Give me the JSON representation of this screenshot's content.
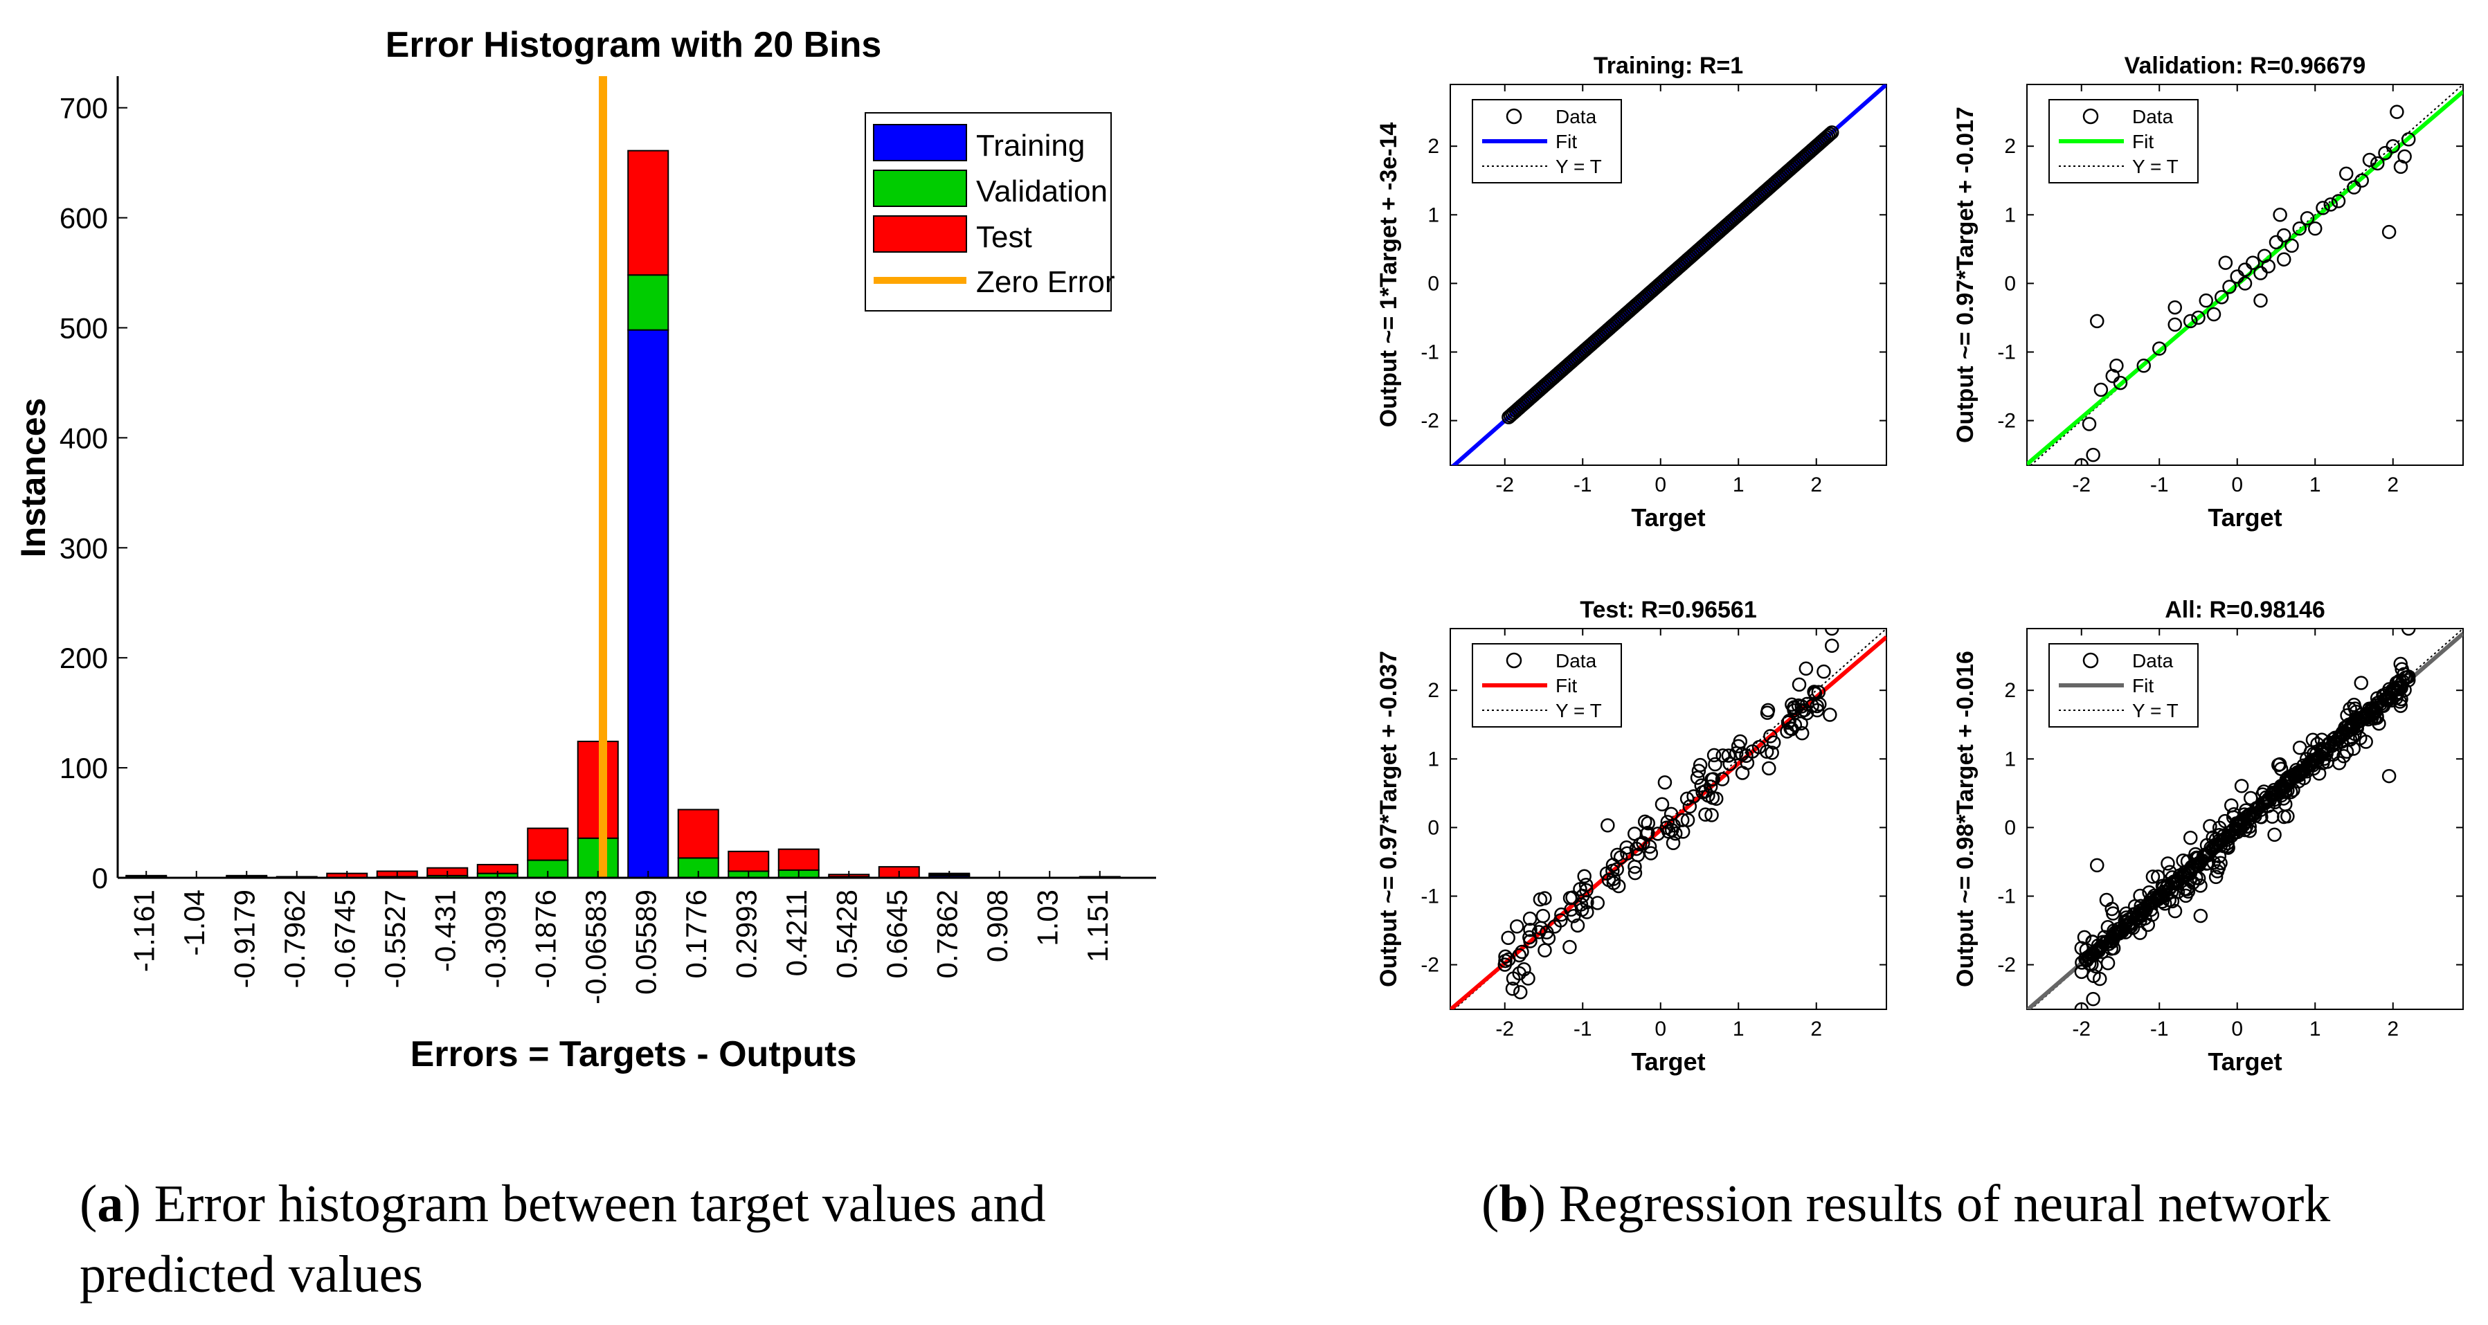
{
  "chart_data": [
    {
      "type": "bar",
      "stacked": true,
      "title": "Error Histogram with 20 Bins",
      "xlabel": "Errors = Targets - Outputs",
      "ylabel": "Instances",
      "ylim": [
        0,
        730
      ],
      "yticks": [
        0,
        100,
        200,
        300,
        400,
        500,
        600,
        700
      ],
      "categories": [
        "-1.161",
        "-1.04",
        "-0.9179",
        "-0.7962",
        "-0.6745",
        "-0.5527",
        "-0.431",
        "-0.3093",
        "-0.1876",
        "-0.06583",
        "0.05589",
        "0.1776",
        "0.2993",
        "0.4211",
        "0.5428",
        "0.6645",
        "0.7862",
        "0.908",
        "1.03",
        "1.151"
      ],
      "series": [
        {
          "name": "Training",
          "color": "#0000ff",
          "values": [
            1,
            0,
            1,
            0,
            0,
            0,
            0,
            0,
            0,
            0,
            498,
            0,
            0,
            0,
            1,
            0,
            2,
            0,
            0,
            1
          ]
        },
        {
          "name": "Validation",
          "color": "#00cc00",
          "values": [
            0,
            0,
            0,
            0,
            0,
            1,
            2,
            4,
            16,
            36,
            50,
            18,
            6,
            7,
            0,
            0,
            1,
            0,
            0,
            0
          ]
        },
        {
          "name": "Test",
          "color": "#ff0000",
          "values": [
            1,
            0,
            1,
            1,
            4,
            5,
            7,
            8,
            29,
            88,
            113,
            44,
            18,
            19,
            2,
            10,
            1,
            0,
            0,
            0
          ]
        }
      ],
      "zero_error": {
        "label": "Zero Error",
        "color": "#ffa500",
        "bin_position": 9.6
      },
      "legend": [
        "Training",
        "Validation",
        "Test",
        "Zero Error"
      ],
      "legend_position": "top-right"
    },
    {
      "type": "scatter",
      "title": "Training: R=1",
      "xlabel": "Target",
      "ylabel": "Output ~= 1*Target + -3e-14",
      "xlim": [
        -2.7,
        2.9
      ],
      "ylim": [
        -2.65,
        2.9
      ],
      "xticks": [
        -2,
        -1,
        0,
        1,
        2
      ],
      "yticks": [
        -2,
        -1,
        0,
        1,
        2
      ],
      "fit": {
        "slope": 1,
        "intercept": 0,
        "color": "#0000ff"
      },
      "legend": [
        "Data",
        "Fit",
        "Y = T"
      ],
      "points": "dense band of circles along y = x from x = -1.95 to x = 2.2"
    },
    {
      "type": "scatter",
      "title": "Validation: R=0.96679",
      "xlabel": "Target",
      "ylabel": "Output ~= 0.97*Target + -0.017",
      "xlim": [
        -2.7,
        2.9
      ],
      "ylim": [
        -2.65,
        2.9
      ],
      "xticks": [
        -2,
        -1,
        0,
        1,
        2
      ],
      "yticks": [
        -2,
        -1,
        0,
        1,
        2
      ],
      "fit": {
        "slope": 0.97,
        "intercept": -0.017,
        "color": "#00ff00"
      },
      "legend": [
        "Data",
        "Fit",
        "Y = T"
      ],
      "points": [
        [
          -2.0,
          -2.65
        ],
        [
          -1.85,
          -2.5
        ],
        [
          -1.9,
          -2.05
        ],
        [
          -1.75,
          -1.55
        ],
        [
          -1.8,
          -0.55
        ],
        [
          -1.6,
          -1.35
        ],
        [
          -1.55,
          -1.2
        ],
        [
          -1.5,
          -1.45
        ],
        [
          -1.2,
          -1.2
        ],
        [
          -1.0,
          -0.95
        ],
        [
          -0.8,
          -0.6
        ],
        [
          -0.6,
          -0.55
        ],
        [
          -0.4,
          -0.25
        ],
        [
          -0.3,
          -0.45
        ],
        [
          -0.2,
          -0.2
        ],
        [
          -0.1,
          -0.05
        ],
        [
          0.1,
          0.0
        ],
        [
          0.2,
          0.3
        ],
        [
          0.3,
          0.15
        ],
        [
          0.35,
          0.4
        ],
        [
          0.4,
          0.25
        ],
        [
          0.5,
          0.6
        ],
        [
          0.6,
          0.7
        ],
        [
          0.7,
          0.55
        ],
        [
          0.8,
          0.8
        ],
        [
          0.9,
          0.95
        ],
        [
          1.1,
          1.1
        ],
        [
          1.2,
          1.15
        ],
        [
          1.3,
          1.2
        ],
        [
          1.5,
          1.4
        ],
        [
          1.6,
          1.5
        ],
        [
          1.7,
          1.8
        ],
        [
          1.8,
          1.75
        ],
        [
          1.9,
          1.9
        ],
        [
          2.0,
          2.0
        ],
        [
          2.05,
          2.5
        ],
        [
          2.1,
          1.7
        ],
        [
          2.15,
          1.85
        ],
        [
          2.2,
          2.1
        ],
        [
          1.95,
          0.75
        ],
        [
          0.3,
          -0.25
        ],
        [
          -0.8,
          -0.35
        ],
        [
          0.1,
          0.2
        ],
        [
          -0.5,
          -0.5
        ],
        [
          0.0,
          0.1
        ],
        [
          1.0,
          0.8
        ],
        [
          0.6,
          0.35
        ],
        [
          -0.15,
          0.3
        ],
        [
          0.55,
          1.0
        ],
        [
          1.4,
          1.6
        ]
      ]
    },
    {
      "type": "scatter",
      "title": "Test: R=0.96561",
      "xlabel": "Target",
      "ylabel": "Output ~= 0.97*Target + -0.037",
      "xlim": [
        -2.7,
        2.9
      ],
      "ylim": [
        -2.65,
        2.9
      ],
      "xticks": [
        -2,
        -1,
        0,
        1,
        2
      ],
      "yticks": [
        -2,
        -1,
        0,
        1,
        2
      ],
      "fit": {
        "slope": 0.97,
        "intercept": -0.037,
        "color": "#ff0000"
      },
      "legend": [
        "Data",
        "Fit",
        "Y = T"
      ],
      "points": "~150 circles scattered around the fit line from x = -2 to x = 2.2"
    },
    {
      "type": "scatter",
      "title": "All: R=0.98146",
      "xlabel": "Target",
      "ylabel": "Output ~= 0.98*Target + -0.016",
      "xlim": [
        -2.7,
        2.9
      ],
      "ylim": [
        -2.65,
        2.9
      ],
      "xticks": [
        -2,
        -1,
        0,
        1,
        2
      ],
      "yticks": [
        -2,
        -1,
        0,
        1,
        2
      ],
      "fit": {
        "slope": 0.98,
        "intercept": -0.016,
        "color": "#666666"
      },
      "legend": [
        "Data",
        "Fit",
        "Y = T"
      ],
      "points": "~700 circles: dense band along y = x plus scattered outliers"
    }
  ],
  "captions": {
    "a_letter": "a",
    "a_text": " Error histogram between target values and predicted values",
    "b_letter": "b",
    "b_text": " Regression results of neural network"
  },
  "colors": {
    "training": "#0000ff",
    "validation": "#00cc00",
    "test": "#ff0000",
    "zero_error": "#ffa500",
    "fit_train": "#0000ff",
    "fit_val": "#00ff00",
    "fit_test": "#ff0000",
    "fit_all": "#666666"
  }
}
